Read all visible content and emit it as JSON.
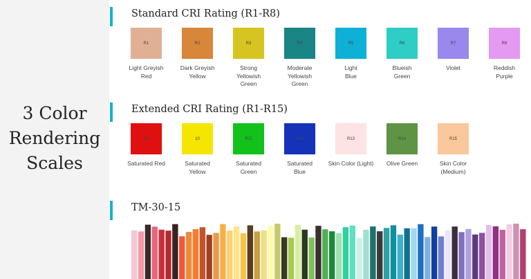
{
  "title": "3 Color\nRendering\nScales",
  "sections": [
    {
      "heading": "Standard CRI Rating (R1-R8)",
      "swatches": [
        {
          "code": "R1",
          "color": "#e0b095",
          "name": "Light Greyish\nRed"
        },
        {
          "code": "R2",
          "color": "#d8863a",
          "name": "Dark Greyish\nYellow"
        },
        {
          "code": "R3",
          "color": "#d6c421",
          "name": "Strong\nYellowish\nGreen"
        },
        {
          "code": "R4",
          "color": "#198585",
          "name": "Moderate\nYellowish\nGreen"
        },
        {
          "code": "R5",
          "color": "#0eb0d6",
          "name": "Light\nBlue"
        },
        {
          "code": "R6",
          "color": "#2ecdc6",
          "name": "Blueish\nGreen"
        },
        {
          "code": "R7",
          "color": "#9a88ee",
          "name": "Violet"
        },
        {
          "code": "R8",
          "color": "#e49af0",
          "name": "Reddish\nPurple"
        }
      ]
    },
    {
      "heading": "Extended CRI Rating (R1-R15)",
      "swatches": [
        {
          "code": "R9",
          "color": "#e01010",
          "name": "Saturated Red"
        },
        {
          "code": "10",
          "color": "#f5e600",
          "name": "Saturated\nYellow"
        },
        {
          "code": "R11",
          "color": "#12c21a",
          "name": "Saturated\nGreen"
        },
        {
          "code": "R12",
          "color": "#1433b8",
          "name": "Saturated\nBlue"
        },
        {
          "code": "R13",
          "color": "#fde3e3",
          "name": "Skin Color (Light)"
        },
        {
          "code": "R14",
          "color": "#5e9444",
          "name": "Olive Green"
        },
        {
          "code": "R15",
          "color": "#fac89a",
          "name": "Skin Color\n(Medium)"
        }
      ]
    },
    {
      "heading": "TM-30-15"
    }
  ]
}
